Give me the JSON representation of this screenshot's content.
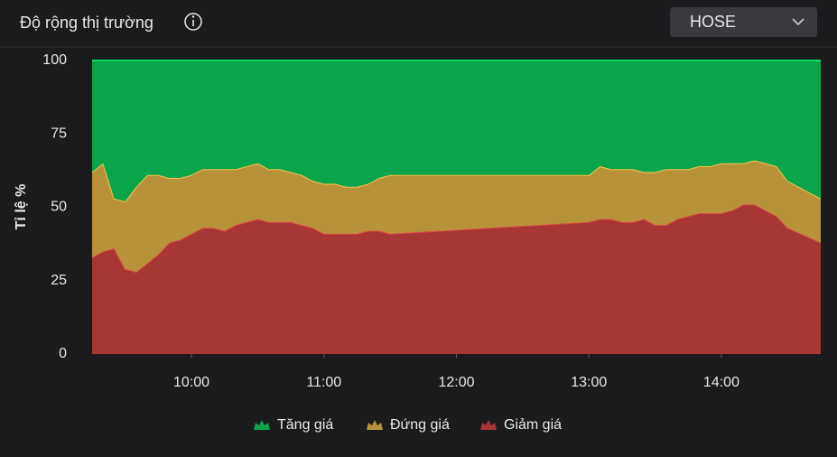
{
  "header": {
    "title": "Độ rộng thị trường",
    "exchange": "HOSE"
  },
  "chart_data": {
    "type": "stacked_area",
    "y_label": "Tỉ lệ %",
    "x": [
      "09:15",
      "09:20",
      "09:25",
      "09:30",
      "09:35",
      "09:40",
      "09:45",
      "09:50",
      "09:55",
      "10:00",
      "10:05",
      "10:10",
      "10:15",
      "10:20",
      "10:25",
      "10:30",
      "10:35",
      "10:40",
      "10:45",
      "10:50",
      "10:55",
      "11:00",
      "11:05",
      "11:10",
      "11:15",
      "11:20",
      "11:25",
      "11:30",
      "13:00",
      "13:05",
      "13:10",
      "13:15",
      "13:20",
      "13:25",
      "13:30",
      "13:35",
      "13:40",
      "13:45",
      "13:50",
      "13:55",
      "14:00",
      "14:05",
      "14:10",
      "14:15",
      "14:20",
      "14:25",
      "14:30",
      "14:45"
    ],
    "xlim": [
      "09:15",
      "14:45"
    ],
    "xticks": [
      "10:00",
      "11:00",
      "12:00",
      "13:00",
      "14:00"
    ],
    "ylim": [
      0,
      100
    ],
    "yticks": [
      0,
      25,
      50,
      75,
      100
    ],
    "legend": "bottom",
    "series": [
      {
        "name": "Tăng giá",
        "color": "#0aa44a",
        "values": [
          38,
          35,
          47,
          48,
          43,
          39,
          39,
          40,
          40,
          39,
          37,
          37,
          37,
          37,
          36,
          35,
          37,
          37,
          38,
          39,
          41,
          42,
          42,
          43,
          43,
          42,
          40,
          39,
          39,
          36,
          37,
          37,
          37,
          38,
          38,
          37,
          37,
          37,
          36,
          36,
          35,
          35,
          35,
          34,
          35,
          36,
          41,
          47
        ]
      },
      {
        "name": "Đứng giá",
        "color": "#b8923a",
        "values": [
          29,
          30,
          17,
          23,
          29,
          30,
          27,
          22,
          21,
          20,
          20,
          20,
          21,
          19,
          19,
          19,
          18,
          18,
          17,
          17,
          16,
          17,
          17,
          16,
          16,
          16,
          18,
          20,
          16,
          18,
          17,
          18,
          18,
          16,
          18,
          19,
          17,
          16,
          16,
          16,
          17,
          16,
          14,
          15,
          16,
          17,
          16,
          15
        ]
      },
      {
        "name": "Giảm giá",
        "color": "#a63732",
        "values": [
          33,
          35,
          36,
          29,
          28,
          31,
          34,
          38,
          39,
          41,
          43,
          43,
          42,
          44,
          45,
          46,
          45,
          45,
          45,
          44,
          43,
          41,
          41,
          41,
          41,
          42,
          42,
          41,
          45,
          46,
          46,
          45,
          45,
          46,
          44,
          44,
          46,
          47,
          48,
          48,
          48,
          49,
          51,
          51,
          49,
          47,
          43,
          38
        ]
      }
    ]
  }
}
